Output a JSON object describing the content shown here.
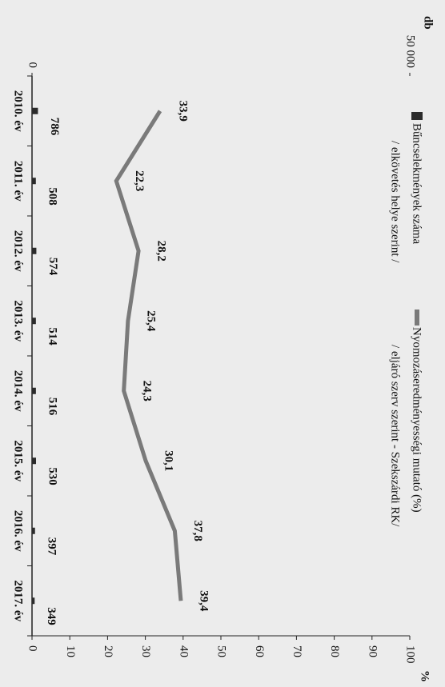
{
  "chart_data": {
    "type": "bar",
    "y_label": "db",
    "y2_label": "%",
    "categories": [
      "2010. év",
      "2011. év",
      "2012. év",
      "2013. év",
      "2014. év",
      "2015. év",
      "2016. év",
      "2017. év"
    ],
    "series": [
      {
        "name": "Bűncselekmények száma",
        "note": "/ elkövetés helye szerint /",
        "type": "bar",
        "color": "#2b2b2b",
        "values": [
          786,
          508,
          574,
          514,
          516,
          530,
          397,
          349
        ]
      },
      {
        "name": "Nyomozáseredményességi mutató (%)",
        "note": "/ eljáró szerv szerint - Szekszárdi RK/",
        "type": "line",
        "axis": "y2",
        "color": "#7a7a7a",
        "values": [
          33.9,
          22.3,
          28.2,
          25.4,
          24.3,
          30.1,
          37.8,
          39.4
        ],
        "value_labels": [
          "33,9",
          "22,3",
          "28,2",
          "25,4",
          "24,3",
          "30,1",
          "37,8",
          "39,4"
        ]
      }
    ],
    "ylim": [
      0,
      50000
    ],
    "yticks": [
      0,
      {
        "value": 50000,
        "label": "50 000"
      }
    ],
    "y2lim": [
      0,
      100
    ],
    "y2ticks": [
      0,
      10,
      20,
      30,
      40,
      50,
      60,
      70,
      80,
      90,
      100
    ]
  }
}
